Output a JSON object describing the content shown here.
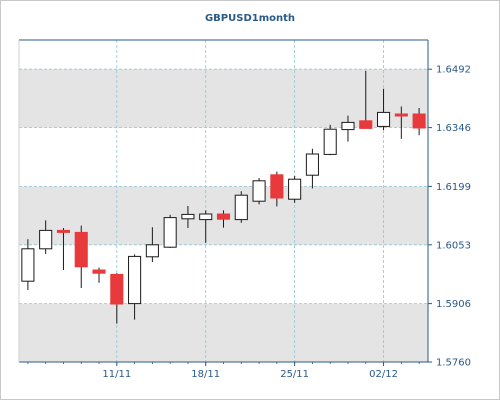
{
  "chart_data": {
    "type": "candlestick",
    "title": "GBPUSD1month",
    "xlabel": "",
    "ylabel": "",
    "ylim": [
      1.576,
      1.6565
    ],
    "y_ticks": [
      1.6492,
      1.6346,
      1.6199,
      1.6053,
      1.5906,
      1.576
    ],
    "x_tick_labels": [
      "11/11",
      "18/11",
      "25/11",
      "02/12"
    ],
    "grid": true,
    "legend": "none",
    "colors": {
      "up_fill": "#ffffff",
      "down_fill": "#e8393c",
      "candle_edge": "#1a1a1a",
      "wick": "#1a1a1a",
      "grid": "#8fc8d4",
      "axis": "#2a5a8a",
      "band": "#e4e4e4"
    },
    "series": [
      {
        "candles": [
          {
            "date": "2013-11-04",
            "open": 1.5962,
            "high": 1.6067,
            "low": 1.594,
            "close": 1.6043
          },
          {
            "date": "2013-11-05",
            "open": 1.6043,
            "high": 1.6114,
            "low": 1.603,
            "close": 1.6089
          },
          {
            "date": "2013-11-06",
            "open": 1.6089,
            "high": 1.6095,
            "low": 1.599,
            "close": 1.6084
          },
          {
            "date": "2013-11-07",
            "open": 1.6084,
            "high": 1.6101,
            "low": 1.5945,
            "close": 1.5998
          },
          {
            "date": "2013-11-08",
            "open": 1.599,
            "high": 1.5996,
            "low": 1.5958,
            "close": 1.5982
          },
          {
            "date": "2013-11-11",
            "open": 1.5979,
            "high": 1.5982,
            "low": 1.5856,
            "close": 1.5905
          },
          {
            "date": "2013-11-12",
            "open": 1.5906,
            "high": 1.6029,
            "low": 1.5866,
            "close": 1.6024
          },
          {
            "date": "2013-11-13",
            "open": 1.6023,
            "high": 1.6097,
            "low": 1.601,
            "close": 1.6053
          },
          {
            "date": "2013-11-14",
            "open": 1.6047,
            "high": 1.6128,
            "low": 1.6045,
            "close": 1.6121
          },
          {
            "date": "2013-11-15",
            "open": 1.6118,
            "high": 1.615,
            "low": 1.6095,
            "close": 1.6129
          },
          {
            "date": "2013-11-18",
            "open": 1.6116,
            "high": 1.6139,
            "low": 1.6058,
            "close": 1.613
          },
          {
            "date": "2013-11-19",
            "open": 1.613,
            "high": 1.6139,
            "low": 1.6096,
            "close": 1.6117
          },
          {
            "date": "2013-11-20",
            "open": 1.6116,
            "high": 1.6187,
            "low": 1.6108,
            "close": 1.6177
          },
          {
            "date": "2013-11-21",
            "open": 1.6162,
            "high": 1.622,
            "low": 1.6154,
            "close": 1.6213
          },
          {
            "date": "2013-11-22",
            "open": 1.6228,
            "high": 1.6236,
            "low": 1.6149,
            "close": 1.617
          },
          {
            "date": "2013-11-25",
            "open": 1.6167,
            "high": 1.6225,
            "low": 1.6158,
            "close": 1.6217
          },
          {
            "date": "2013-11-26",
            "open": 1.6227,
            "high": 1.6293,
            "low": 1.6194,
            "close": 1.628
          },
          {
            "date": "2013-11-27",
            "open": 1.6279,
            "high": 1.6353,
            "low": 1.6277,
            "close": 1.6342
          },
          {
            "date": "2013-11-28",
            "open": 1.6341,
            "high": 1.6376,
            "low": 1.6311,
            "close": 1.6359
          },
          {
            "date": "2013-11-29",
            "open": 1.6363,
            "high": 1.6488,
            "low": 1.6348,
            "close": 1.6344
          },
          {
            "date": "2013-12-02",
            "open": 1.6349,
            "high": 1.6443,
            "low": 1.634,
            "close": 1.6384
          },
          {
            "date": "2013-12-03",
            "open": 1.638,
            "high": 1.6399,
            "low": 1.6318,
            "close": 1.6376
          },
          {
            "date": "2013-12-04",
            "open": 1.638,
            "high": 1.6395,
            "low": 1.6327,
            "close": 1.6345
          }
        ]
      }
    ]
  }
}
